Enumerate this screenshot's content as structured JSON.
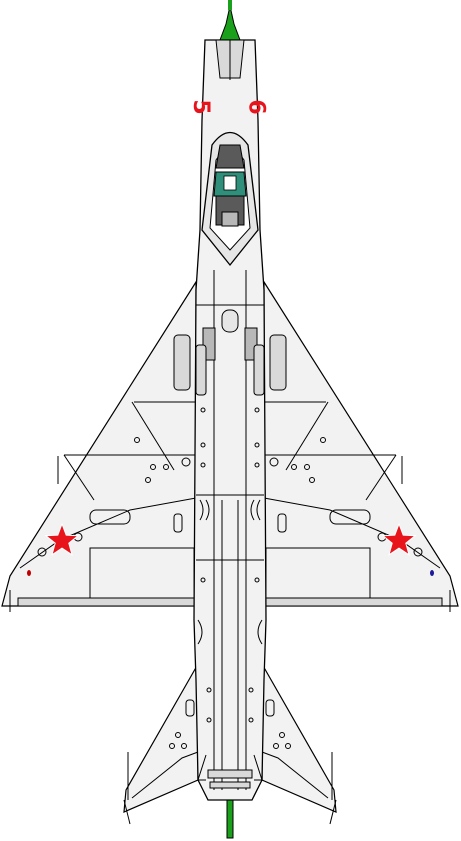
{
  "aircraft": {
    "nose_number_left": "5",
    "nose_number_right": "9",
    "colors": {
      "background": "#ffffff",
      "airframe": "#f2f2f2",
      "outline": "#000000",
      "panel_shade": "#d9d9d9",
      "dark_panel": "#b8b8b8",
      "canopy_frame": "#e6e6e6",
      "seat": "#5a5a5a",
      "pilot": "#2f8f7a",
      "marking_red": "#e8141c",
      "pitot_green": "#1aa01a",
      "nav_light_red": "#c00000",
      "nav_light_blue": "#1a1a9a"
    },
    "insignia": [
      "red-star-left-wing",
      "red-star-right-wing"
    ]
  }
}
